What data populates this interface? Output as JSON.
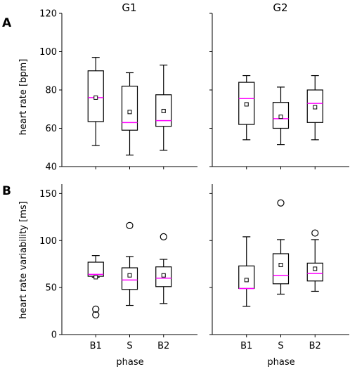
{
  "figure": {
    "panel_letters": [
      "A",
      "B"
    ],
    "column_titles": [
      "G1",
      "G2"
    ],
    "xlabel": "phase"
  },
  "chart_data": [
    {
      "type": "box",
      "panel": "A",
      "group": "G1",
      "ylabel": "heart rate [bpm]",
      "xlabel": "phase",
      "categories": [
        "B1",
        "S",
        "B2"
      ],
      "ylim": [
        40,
        120
      ],
      "yticks": [
        40,
        60,
        80,
        100,
        120
      ],
      "boxes": [
        {
          "category": "B1",
          "whisker_low": 51,
          "q1": 63.5,
          "median": 76,
          "q3": 90,
          "whisker_high": 97,
          "mean": 76,
          "outliers": []
        },
        {
          "category": "S",
          "whisker_low": 46,
          "q1": 59,
          "median": 63,
          "q3": 82,
          "whisker_high": 89,
          "mean": 68.5,
          "outliers": []
        },
        {
          "category": "B2",
          "whisker_low": 48.5,
          "q1": 61,
          "median": 64,
          "q3": 77.5,
          "whisker_high": 93,
          "mean": 69,
          "outliers": []
        }
      ]
    },
    {
      "type": "box",
      "panel": "A",
      "group": "G2",
      "ylabel": "",
      "xlabel": "phase",
      "categories": [
        "B1",
        "S",
        "B2"
      ],
      "ylim": [
        40,
        120
      ],
      "yticks": [
        40,
        60,
        80,
        100,
        120
      ],
      "boxes": [
        {
          "category": "B1",
          "whisker_low": 54,
          "q1": 62,
          "median": 75.5,
          "q3": 84,
          "whisker_high": 87.5,
          "mean": 72.5,
          "outliers": []
        },
        {
          "category": "S",
          "whisker_low": 51.5,
          "q1": 60,
          "median": 65,
          "q3": 73.5,
          "whisker_high": 81.5,
          "mean": 66,
          "outliers": []
        },
        {
          "category": "B2",
          "whisker_low": 54,
          "q1": 63,
          "median": 73,
          "q3": 80,
          "whisker_high": 87.5,
          "mean": 71,
          "outliers": []
        }
      ]
    },
    {
      "type": "box",
      "panel": "B",
      "group": "G1",
      "ylabel": "heart rate variability [ms]",
      "xlabel": "phase",
      "categories": [
        "B1",
        "S",
        "B2"
      ],
      "ylim": [
        0,
        160
      ],
      "yticks": [
        0,
        50,
        100,
        150
      ],
      "boxes": [
        {
          "category": "B1",
          "whisker_low": 61,
          "q1": 62,
          "median": 64,
          "q3": 77,
          "whisker_high": 84,
          "mean": 61,
          "outliers": [
            27,
            21
          ]
        },
        {
          "category": "S",
          "whisker_low": 31,
          "q1": 48,
          "median": 58,
          "q3": 71,
          "whisker_high": 83,
          "mean": 63,
          "outliers": [
            116
          ]
        },
        {
          "category": "B2",
          "whisker_low": 33,
          "q1": 51,
          "median": 60,
          "q3": 72,
          "whisker_high": 80,
          "mean": 63,
          "outliers": [
            104
          ]
        }
      ]
    },
    {
      "type": "box",
      "panel": "B",
      "group": "G2",
      "ylabel": "",
      "xlabel": "phase",
      "categories": [
        "B1",
        "S",
        "B2"
      ],
      "ylim": [
        0,
        160
      ],
      "yticks": [
        0,
        50,
        100,
        150
      ],
      "boxes": [
        {
          "category": "B1",
          "whisker_low": 30,
          "q1": 49,
          "median": 49,
          "q3": 73,
          "whisker_high": 104,
          "mean": 58,
          "outliers": []
        },
        {
          "category": "S",
          "whisker_low": 43,
          "q1": 54,
          "median": 63,
          "q3": 86,
          "whisker_high": 101,
          "mean": 74,
          "outliers": [
            140
          ]
        },
        {
          "category": "B2",
          "whisker_low": 46,
          "q1": 57,
          "median": 65,
          "q3": 76,
          "whisker_high": 101,
          "mean": 70,
          "outliers": [
            108
          ]
        }
      ]
    }
  ],
  "colors": {
    "median": "#ff00ff",
    "box": "#000000",
    "axes": "#000000",
    "background": "#ffffff"
  }
}
